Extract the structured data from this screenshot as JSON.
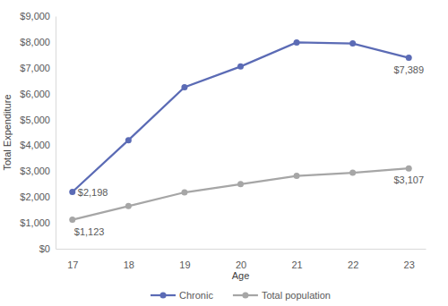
{
  "chart_data": {
    "type": "line",
    "x_label": "Age",
    "y_label": "Total Expenditure",
    "categories": [
      "17",
      "18",
      "19",
      "20",
      "21",
      "22",
      "23"
    ],
    "series": [
      {
        "name": "Chronic",
        "color": "#5b6bb5",
        "marker": "circle",
        "values": [
          2198,
          4200,
          6250,
          7050,
          7980,
          7940,
          7389
        ],
        "value_labels": [
          "$2,198",
          null,
          null,
          null,
          null,
          null,
          "$7,389"
        ]
      },
      {
        "name": "Total population",
        "color": "#a6a6a6",
        "marker": "circle",
        "values": [
          1123,
          1650,
          2180,
          2500,
          2820,
          2940,
          3107
        ],
        "value_labels": [
          "$1,123",
          null,
          null,
          null,
          null,
          null,
          "$3,107"
        ]
      }
    ],
    "ylim": [
      0,
      9000
    ],
    "yticks": [
      {
        "value": 0,
        "label": "$0"
      },
      {
        "value": 1000,
        "label": "$1,000"
      },
      {
        "value": 2000,
        "label": "$2,000"
      },
      {
        "value": 3000,
        "label": "$3,000"
      },
      {
        "value": 4000,
        "label": "$4,000"
      },
      {
        "value": 5000,
        "label": "$5,000"
      },
      {
        "value": 6000,
        "label": "$6,000"
      },
      {
        "value": 7000,
        "label": "$7,000"
      },
      {
        "value": 8000,
        "label": "$8,000"
      },
      {
        "value": 9000,
        "label": "$9,000"
      }
    ],
    "grid": false,
    "data_labels": true,
    "legend": "bottom"
  }
}
